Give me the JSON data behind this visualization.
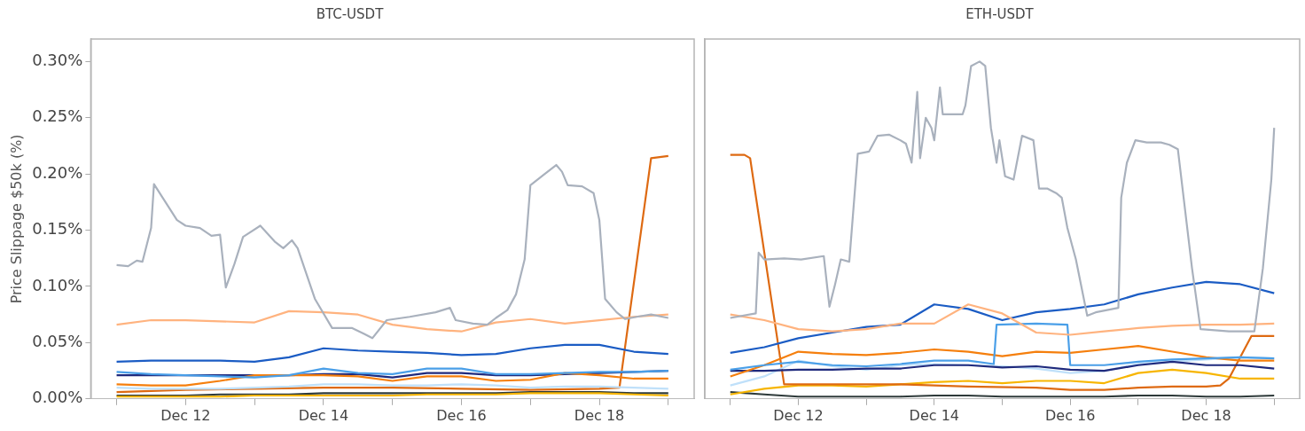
{
  "chart_data": [
    {
      "type": "line",
      "title": "BTC-USDT",
      "ylabel": "Price Slippage $50k (%)",
      "marker": "none",
      "x": [
        "--12-11T00:00",
        "--12-11T12:00",
        "--12-12T00:00",
        "--12-12T12:00",
        "--12-13T00:00",
        "--12-13T12:00",
        "--12-14T00:00",
        "--12-14T12:00",
        "--12-15T00:00",
        "--12-15T12:00",
        "--12-16T00:00",
        "--12-16T12:00",
        "--12-17T00:00",
        "--12-17T12:00",
        "--12-18T00:00",
        "--12-18T12:00",
        "--12-19T00:00"
      ],
      "xlim": [
        "--12-10T15:00",
        "--12-19T09:00"
      ],
      "ylim": [
        0,
        0.32
      ],
      "xticks": [
        {
          "value": "--12-11",
          "label": null
        },
        {
          "value": "--12-12",
          "label": "Dec 12"
        },
        {
          "value": "--12-13",
          "label": null
        },
        {
          "value": "--12-14",
          "label": "Dec 14"
        },
        {
          "value": "--12-15",
          "label": null
        },
        {
          "value": "--12-16",
          "label": "Dec 16"
        },
        {
          "value": "--12-17",
          "label": null
        },
        {
          "value": "--12-18",
          "label": "Dec 18"
        },
        {
          "value": "--12-19",
          "label": null
        }
      ],
      "yticks": [
        {
          "value": 0,
          "label": "0.00%"
        },
        {
          "value": 0.05,
          "label": "0.05%"
        },
        {
          "value": 0.1,
          "label": "0.10%"
        },
        {
          "value": 0.15,
          "label": "0.15%"
        },
        {
          "value": 0.2,
          "label": "0.20%"
        },
        {
          "value": 0.25,
          "label": "0.25%"
        },
        {
          "value": 0.3,
          "label": "0.30%"
        }
      ],
      "series": [
        {
          "color": "#a9b1bd",
          "x": [
            "--12-11T00:00",
            "--12-11T04:00",
            "--12-11T07:00",
            "--12-11T09:00",
            "--12-11T12:00",
            "--12-11T13:00",
            "--12-11T17:00",
            "--12-11T21:00",
            "--12-12T00:00",
            "--12-12T05:00",
            "--12-12T09:00",
            "--12-12T12:00",
            "--12-12T14:00",
            "--12-12T17:00",
            "--12-12T20:00",
            "--12-13T02:00",
            "--12-13T07:00",
            "--12-13T10:00",
            "--12-13T13:00",
            "--12-13T15:00",
            "--12-13T21:00",
            "--12-14T03:00",
            "--12-14T10:00",
            "--12-14T14:00",
            "--12-14T17:00",
            "--12-14T22:00",
            "--12-15T06:00",
            "--12-15T15:00",
            "--12-15T20:00",
            "--12-15T22:00",
            "--12-16T04:00",
            "--12-16T09:00",
            "--12-16T12:00",
            "--12-16T16:00",
            "--12-16T19:00",
            "--12-16T22:00",
            "--12-17T00:00",
            "--12-17T05:00",
            "--12-17T09:00",
            "--12-17T11:00",
            "--12-17T13:00",
            "--12-17T18:00",
            "--12-17T22:00",
            "--12-18T00:00",
            "--12-18T02:00",
            "--12-18T06:00",
            "--12-18T09:00",
            "--12-18T13:00",
            "--12-18T18:00",
            "--12-19T00:00"
          ],
          "values": [
            0.119,
            0.118,
            0.123,
            0.122,
            0.152,
            0.191,
            0.175,
            0.159,
            0.154,
            0.152,
            0.145,
            0.146,
            0.099,
            0.12,
            0.144,
            0.154,
            0.14,
            0.134,
            0.141,
            0.134,
            0.089,
            0.063,
            0.063,
            0.058,
            0.054,
            0.07,
            0.073,
            0.077,
            0.081,
            0.07,
            0.067,
            0.066,
            0.072,
            0.079,
            0.093,
            0.124,
            0.19,
            0.2,
            0.208,
            0.202,
            0.19,
            0.189,
            0.183,
            0.159,
            0.089,
            0.077,
            0.071,
            0.073,
            0.075,
            0.072
          ]
        },
        {
          "color": "#ffb37f",
          "values": [
            0.066,
            0.07,
            0.07,
            0.069,
            0.068,
            0.078,
            0.077,
            0.075,
            0.066,
            0.062,
            0.06,
            0.068,
            0.071,
            0.067,
            0.07,
            0.073,
            0.075
          ]
        },
        {
          "color": "#1b5cc4",
          "values": [
            0.033,
            0.034,
            0.034,
            0.034,
            0.033,
            0.037,
            0.045,
            0.043,
            0.042,
            0.041,
            0.039,
            0.04,
            0.045,
            0.048,
            0.048,
            0.042,
            0.04
          ]
        },
        {
          "color": "#4a9fe8",
          "values": [
            0.024,
            0.022,
            0.021,
            0.02,
            0.019,
            0.021,
            0.027,
            0.023,
            0.022,
            0.027,
            0.027,
            0.022,
            0.022,
            0.023,
            0.024,
            0.024,
            0.025
          ]
        },
        {
          "color": "#f57f0d",
          "values": [
            0.013,
            0.012,
            0.012,
            0.016,
            0.021,
            0.021,
            0.021,
            0.02,
            0.016,
            0.02,
            0.02,
            0.016,
            0.017,
            0.023,
            0.021,
            0.018,
            0.018
          ]
        },
        {
          "color": "#1f2a7d",
          "values": [
            0.021,
            0.021,
            0.021,
            0.021,
            0.021,
            0.021,
            0.022,
            0.022,
            0.019,
            0.023,
            0.023,
            0.021,
            0.021,
            0.022,
            0.023,
            0.024,
            0.025
          ]
        },
        {
          "color": "#bfe0fa",
          "values": [
            0.01,
            0.009,
            0.009,
            0.009,
            0.01,
            0.011,
            0.013,
            0.013,
            0.012,
            0.012,
            0.013,
            0.012,
            0.01,
            0.011,
            0.011,
            0.01,
            0.009
          ]
        },
        {
          "color": "#de6a12",
          "x": [
            "--12-11T00:00",
            "--12-12T00:00",
            "--12-13T00:00",
            "--12-14T00:00",
            "--12-15T00:00",
            "--12-16T00:00",
            "--12-17T00:00",
            "--12-18T00:00",
            "--12-18T07:00",
            "--12-18T18:00",
            "--12-19T00:00"
          ],
          "values": [
            0.006,
            0.008,
            0.009,
            0.01,
            0.01,
            0.009,
            0.008,
            0.009,
            0.01,
            0.214,
            0.216
          ]
        },
        {
          "color": "#f7b500",
          "values": [
            0.002,
            0.002,
            0.002,
            0.002,
            0.003,
            0.003,
            0.003,
            0.003,
            0.003,
            0.004,
            0.004,
            0.004,
            0.005,
            0.005,
            0.005,
            0.004,
            0.003
          ]
        },
        {
          "color": "#2e3a3a",
          "values": [
            0.003,
            0.003,
            0.003,
            0.004,
            0.004,
            0.004,
            0.005,
            0.005,
            0.005,
            0.005,
            0.005,
            0.005,
            0.006,
            0.006,
            0.006,
            0.005,
            0.005
          ]
        }
      ]
    },
    {
      "type": "line",
      "title": "ETH-USDT",
      "marker": "none",
      "tick_labels": "x",
      "x": [
        "--12-11T00:00",
        "--12-11T12:00",
        "--12-12T00:00",
        "--12-12T12:00",
        "--12-13T00:00",
        "--12-13T12:00",
        "--12-14T00:00",
        "--12-14T12:00",
        "--12-15T00:00",
        "--12-15T12:00",
        "--12-16T00:00",
        "--12-16T12:00",
        "--12-17T00:00",
        "--12-17T12:00",
        "--12-18T00:00",
        "--12-18T12:00",
        "--12-19T00:00"
      ],
      "xlim": [
        "--12-10T15:00",
        "--12-19T09:00"
      ],
      "ylim": [
        0,
        0.32
      ],
      "xticks": [
        {
          "value": "--12-11",
          "label": null
        },
        {
          "value": "--12-12",
          "label": "Dec 12"
        },
        {
          "value": "--12-13",
          "label": null
        },
        {
          "value": "--12-14",
          "label": "Dec 14"
        },
        {
          "value": "--12-15",
          "label": null
        },
        {
          "value": "--12-16",
          "label": "Dec 16"
        },
        {
          "value": "--12-17",
          "label": null
        },
        {
          "value": "--12-18",
          "label": "Dec 18"
        },
        {
          "value": "--12-19",
          "label": null
        }
      ],
      "series": [
        {
          "color": "#a9b1bd",
          "x": [
            "--12-11T00:00",
            "--12-11T09:00",
            "--12-11T10:00",
            "--12-11T12:00",
            "--12-11T19:00",
            "--12-12T01:00",
            "--12-12T09:00",
            "--12-12T11:00",
            "--12-12T13:00",
            "--12-12T15:00",
            "--12-12T18:00",
            "--12-12T21:00",
            "--12-13T01:00",
            "--12-13T04:00",
            "--12-13T08:00",
            "--12-13T12:00",
            "--12-13T14:00",
            "--12-13T16:00",
            "--12-13T18:00",
            "--12-13T19:00",
            "--12-13T21:00",
            "--12-13T23:00",
            "--12-14T00:00",
            "--12-14T02:00",
            "--12-14T03:00",
            "--12-14T06:00",
            "--12-14T10:00",
            "--12-14T11:00",
            "--12-14T13:00",
            "--12-14T16:00",
            "--12-14T18:00",
            "--12-14T20:00",
            "--12-14T22:00",
            "--12-14T23:00",
            "--12-15T01:00",
            "--12-15T04:00",
            "--12-15T07:00",
            "--12-15T11:00",
            "--12-15T13:00",
            "--12-15T16:00",
            "--12-15T19:00",
            "--12-15T21:00",
            "--12-15T23:00",
            "--12-16T02:00",
            "--12-16T06:00",
            "--12-16T09:00",
            "--12-16T17:00",
            "--12-16T18:00",
            "--12-16T20:00",
            "--12-16T23:00",
            "--12-17T03:00",
            "--12-17T08:00",
            "--12-17T11:00",
            "--12-17T14:00",
            "--12-17T19:00",
            "--12-17T22:00",
            "--12-18T08:00",
            "--12-18T17:00",
            "--12-18T20:00",
            "--12-18T23:00",
            "--12-19T00:00"
          ],
          "values": [
            0.072,
            0.076,
            0.13,
            0.124,
            0.125,
            0.124,
            0.127,
            0.082,
            0.102,
            0.124,
            0.122,
            0.218,
            0.22,
            0.234,
            0.235,
            0.23,
            0.227,
            0.21,
            0.273,
            0.214,
            0.25,
            0.241,
            0.23,
            0.277,
            0.253,
            0.253,
            0.253,
            0.261,
            0.296,
            0.3,
            0.296,
            0.241,
            0.21,
            0.23,
            0.198,
            0.195,
            0.234,
            0.23,
            0.187,
            0.187,
            0.183,
            0.179,
            0.152,
            0.124,
            0.074,
            0.077,
            0.081,
            0.179,
            0.21,
            0.23,
            0.228,
            0.228,
            0.226,
            0.222,
            0.116,
            0.062,
            0.06,
            0.06,
            0.116,
            0.195,
            0.241
          ]
        },
        {
          "color": "#ffb37f",
          "values": [
            0.075,
            0.07,
            0.062,
            0.06,
            0.062,
            0.067,
            0.067,
            0.084,
            0.076,
            0.059,
            0.057,
            0.06,
            0.063,
            0.065,
            0.066,
            0.066,
            0.067
          ]
        },
        {
          "color": "#1b5cc4",
          "values": [
            0.041,
            0.046,
            0.054,
            0.059,
            0.064,
            0.066,
            0.084,
            0.08,
            0.07,
            0.077,
            0.08,
            0.084,
            0.093,
            0.099,
            0.104,
            0.102,
            0.094
          ]
        },
        {
          "color": "#4a9fe8",
          "x": [
            "--12-11T00:00",
            "--12-11T12:00",
            "--12-12T00:00",
            "--12-12T12:00",
            "--12-13T00:00",
            "--12-13T12:00",
            "--12-14T00:00",
            "--12-14T12:00",
            "--12-14T21:00",
            "--12-14T22:00",
            "--12-15T12:00",
            "--12-15T23:00",
            "--12-16T00:00",
            "--12-16T12:00",
            "--12-17T00:00",
            "--12-17T12:00",
            "--12-18T00:00",
            "--12-18T12:00",
            "--12-19T00:00"
          ],
          "values": [
            0.026,
            0.03,
            0.033,
            0.03,
            0.029,
            0.031,
            0.034,
            0.034,
            0.031,
            0.066,
            0.067,
            0.066,
            0.03,
            0.03,
            0.033,
            0.035,
            0.036,
            0.037,
            0.036
          ]
        },
        {
          "color": "#f57f0d",
          "values": [
            0.02,
            0.03,
            0.042,
            0.04,
            0.039,
            0.041,
            0.044,
            0.042,
            0.038,
            0.042,
            0.041,
            0.044,
            0.047,
            0.042,
            0.037,
            0.034,
            0.034
          ]
        },
        {
          "color": "#1f2a7d",
          "values": [
            0.025,
            0.025,
            0.026,
            0.026,
            0.027,
            0.027,
            0.03,
            0.03,
            0.028,
            0.029,
            0.026,
            0.025,
            0.03,
            0.033,
            0.03,
            0.03,
            0.027
          ]
        },
        {
          "color": "#bfe0fa",
          "values": [
            0.012,
            0.02,
            0.034,
            0.029,
            0.026,
            0.03,
            0.031,
            0.03,
            0.029,
            0.027,
            0.023,
            0.025,
            0.031,
            0.033,
            0.035,
            0.037,
            0.036
          ]
        },
        {
          "color": "#de6a12",
          "x": [
            "--12-11T00:00",
            "--12-11T05:00",
            "--12-11T07:00",
            "--12-11T19:00",
            "--12-12T12:00",
            "--12-13T12:00",
            "--12-14T12:00",
            "--12-15T12:00",
            "--12-16T00:00",
            "--12-16T12:00",
            "--12-17T00:00",
            "--12-17T12:00",
            "--12-18T00:00",
            "--12-18T05:00",
            "--12-18T08:00",
            "--12-18T16:00",
            "--12-19T00:00"
          ],
          "values": [
            0.217,
            0.217,
            0.214,
            0.013,
            0.013,
            0.013,
            0.011,
            0.01,
            0.008,
            0.008,
            0.01,
            0.011,
            0.011,
            0.012,
            0.018,
            0.056,
            0.056
          ]
        },
        {
          "color": "#f7b500",
          "values": [
            0.004,
            0.009,
            0.012,
            0.012,
            0.011,
            0.013,
            0.015,
            0.016,
            0.014,
            0.016,
            0.016,
            0.014,
            0.023,
            0.026,
            0.023,
            0.018,
            0.018
          ]
        },
        {
          "color": "#2e3a3a",
          "values": [
            0.006,
            0.004,
            0.002,
            0.002,
            0.002,
            0.002,
            0.003,
            0.003,
            0.002,
            0.002,
            0.002,
            0.002,
            0.003,
            0.003,
            0.002,
            0.002,
            0.003
          ]
        }
      ]
    }
  ]
}
